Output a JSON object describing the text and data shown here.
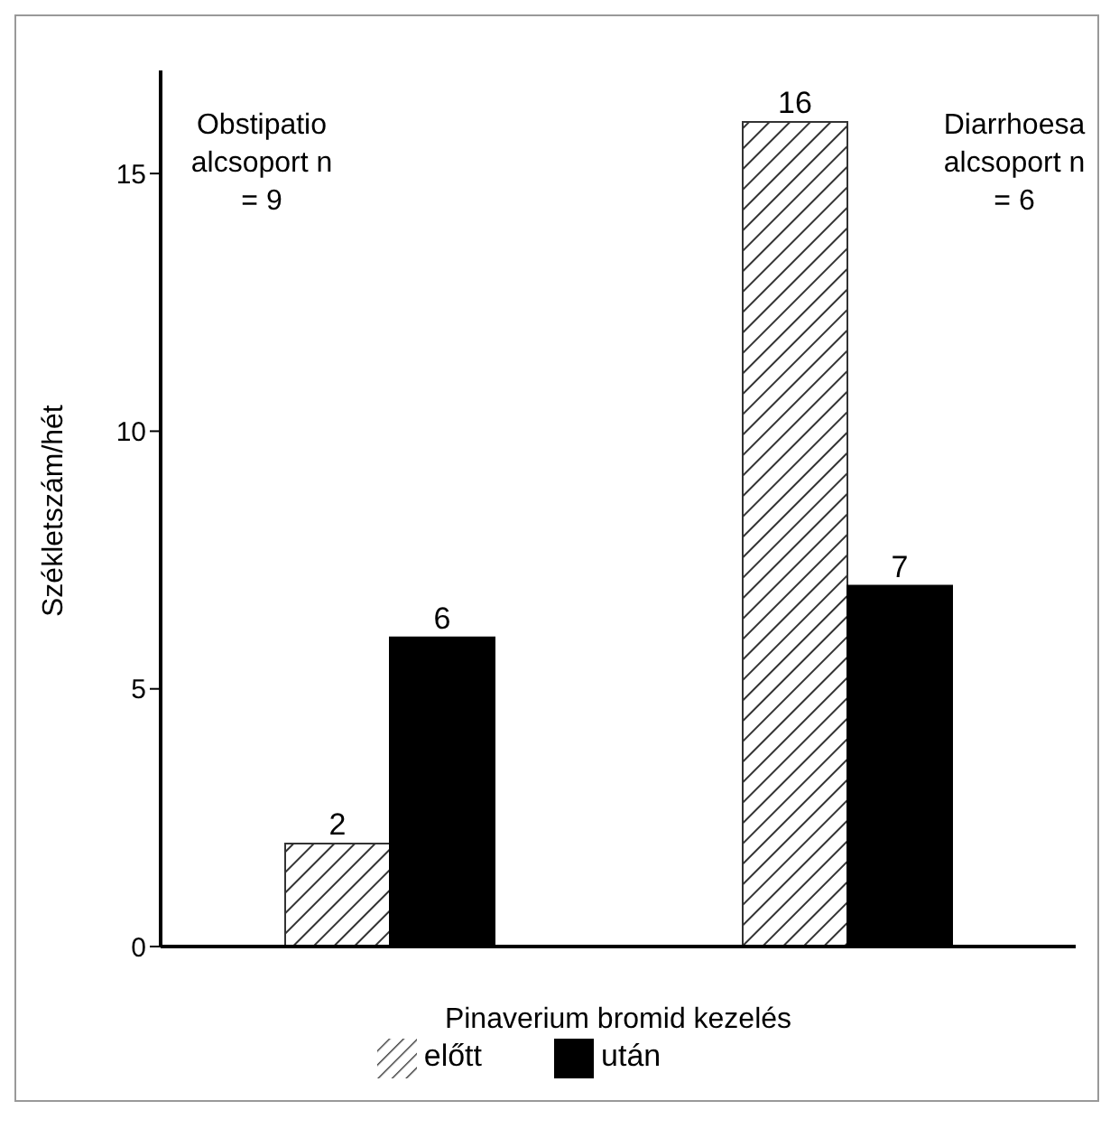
{
  "chart_data": {
    "type": "bar",
    "xlabel": "Pinaverium bromid kezelés",
    "ylabel": "Székletszám/hét",
    "categories": [
      null,
      null
    ],
    "series": [
      {
        "name": "előtt",
        "color": "#333333",
        "values": [
          2,
          16
        ]
      },
      {
        "name": "után",
        "color": "#000000",
        "values": [
          6,
          7
        ]
      }
    ],
    "ylim": [
      0,
      17
    ],
    "yticks": [
      0,
      5,
      10,
      15
    ],
    "data_labels": true,
    "legend": "bottom",
    "tick_labels": "y",
    "grid": false,
    "annotations": [
      "Obstipatio alcsoport n = 9",
      "Diarrhoesa alcsoport n = 6"
    ]
  }
}
